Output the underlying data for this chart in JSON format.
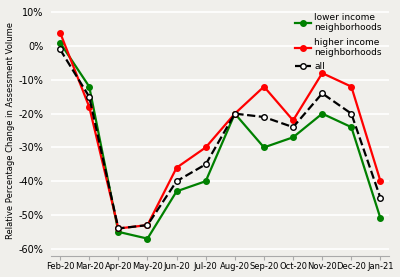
{
  "x_labels": [
    "Feb-20",
    "Mar-20",
    "Apr-20",
    "May-20",
    "Jun-20",
    "Jul-20",
    "Aug-20",
    "Sep-20",
    "Oct-20",
    "Nov-20",
    "Dec-20",
    "Jan-21"
  ],
  "lower_income": [
    1,
    -12,
    -55,
    -57,
    -43,
    -40,
    -20,
    -30,
    -27,
    -20,
    -24,
    -51
  ],
  "higher_income": [
    4,
    -18,
    -54,
    -53,
    -36,
    -30,
    -20,
    -12,
    -22,
    -8,
    -12,
    -40
  ],
  "all": [
    -1,
    -15,
    -54,
    -53,
    -40,
    -35,
    -20,
    -21,
    -24,
    -14,
    -20,
    -45
  ],
  "lower_color": "#008000",
  "higher_color": "#ff0000",
  "all_color": "#000000",
  "ylabel": "Relative Percentage Change in Assessment Volume",
  "ylim": [
    -62,
    12
  ],
  "yticks": [
    10,
    0,
    -10,
    -20,
    -30,
    -40,
    -50,
    -60
  ],
  "ytick_labels": [
    "10%",
    "0%",
    "-10%",
    "-20%",
    "-30%",
    "-40%",
    "-50%",
    "-60%"
  ],
  "legend_lower": "lower income\nneighborhoods",
  "legend_higher": "higher income\nneighborhoods",
  "legend_all": "all",
  "bg_color": "#f0efeb",
  "marker": "o",
  "markersize": 4,
  "linewidth": 1.6
}
